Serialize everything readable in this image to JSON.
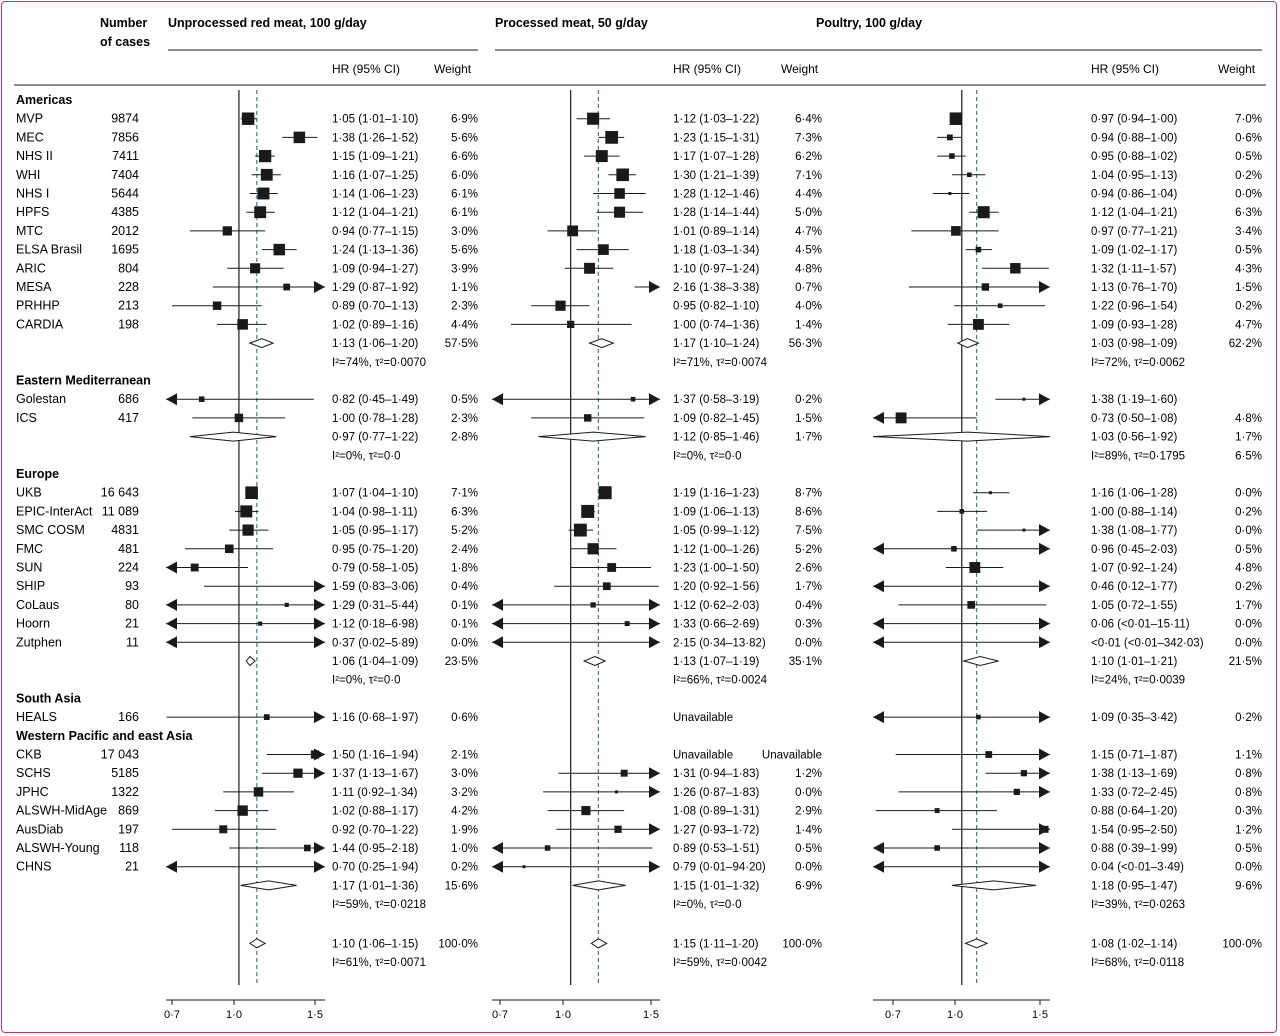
{
  "header": {
    "cases_label_line1": "Number",
    "cases_label_line2": "of cases",
    "hr_label": "HR (95% CI)",
    "weight_label": "Weight"
  },
  "colors": {
    "frame": "#c8356b",
    "ink": "#1a1a1a",
    "dashed": "#3b7d8c"
  },
  "panels": [
    {
      "title": "Unprocessed red meat, 100 g/day",
      "ticks": [
        "0·7",
        "1·0",
        "1·5"
      ],
      "overall_line": 1.1
    },
    {
      "title": "Processed meat, 50 g/day",
      "ticks": [
        "0·7",
        "1·0",
        "1·5"
      ],
      "overall_line": 1.15
    },
    {
      "title": "Poultry, 100 g/day",
      "ticks": [
        "0·7",
        "1·0",
        "1·5"
      ],
      "overall_line": 1.08
    }
  ],
  "chart_data": {
    "type": "forest",
    "xscale": "log",
    "xlim": [
      0.7,
      1.5
    ],
    "rows": [
      {
        "kind": "region",
        "label": "Americas"
      },
      {
        "kind": "study",
        "label": "MVP",
        "cases": "9874",
        "r": [
          1.05,
          1.01,
          1.1,
          "1·05 (1·01–1·10)",
          "6·9%"
        ],
        "p": [
          1.12,
          1.03,
          1.22,
          "1·12 (1·03–1·22)",
          "6·4%"
        ],
        "c": [
          0.97,
          0.94,
          1.0,
          "0·97 (0·94–1·00)",
          "7·0%"
        ]
      },
      {
        "kind": "study",
        "label": "MEC",
        "cases": "7856",
        "r": [
          1.38,
          1.26,
          1.52,
          "1·38 (1·26–1·52)",
          "5·6%"
        ],
        "p": [
          1.23,
          1.15,
          1.31,
          "1·23 (1·15–1·31)",
          "7·3%"
        ],
        "c": [
          0.94,
          0.88,
          1.0,
          "0·94 (0·88–1·00)",
          "0·6%"
        ]
      },
      {
        "kind": "study",
        "label": "NHS II",
        "cases": "7411",
        "r": [
          1.15,
          1.09,
          1.21,
          "1·15 (1·09–1·21)",
          "6·6%"
        ],
        "p": [
          1.17,
          1.07,
          1.28,
          "1·17 (1·07–1·28)",
          "6·2%"
        ],
        "c": [
          0.95,
          0.88,
          1.02,
          "0·95 (0·88–1·02)",
          "0·5%"
        ]
      },
      {
        "kind": "study",
        "label": "WHI",
        "cases": "7404",
        "r": [
          1.16,
          1.07,
          1.25,
          "1·16 (1·07–1·25)",
          "6·0%"
        ],
        "p": [
          1.3,
          1.21,
          1.39,
          "1·30 (1·21–1·39)",
          "7·1%"
        ],
        "c": [
          1.04,
          0.95,
          1.13,
          "1·04 (0·95–1·13)",
          "0·2%"
        ]
      },
      {
        "kind": "study",
        "label": "NHS I",
        "cases": "5644",
        "r": [
          1.14,
          1.06,
          1.23,
          "1·14 (1·06–1·23)",
          "6·1%"
        ],
        "p": [
          1.28,
          1.12,
          1.46,
          "1·28 (1·12–1·46)",
          "4·4%"
        ],
        "c": [
          0.94,
          0.86,
          1.04,
          "0·94 (0·86–1·04)",
          "0·0%"
        ]
      },
      {
        "kind": "study",
        "label": "HPFS",
        "cases": "4385",
        "r": [
          1.12,
          1.04,
          1.21,
          "1·12 (1·04–1·21)",
          "6·1%"
        ],
        "p": [
          1.28,
          1.14,
          1.44,
          "1·28 (1·14–1·44)",
          "5·0%"
        ],
        "c": [
          1.12,
          1.04,
          1.21,
          "1·12 (1·04–1·21)",
          "6·3%"
        ]
      },
      {
        "kind": "study",
        "label": "MTC",
        "cases": "2012",
        "r": [
          0.94,
          0.77,
          1.15,
          "0·94 (0·77–1·15)",
          "3·0%"
        ],
        "p": [
          1.01,
          0.89,
          1.14,
          "1·01 (0·89–1·14)",
          "4·7%"
        ],
        "c": [
          0.97,
          0.77,
          1.21,
          "0·97 (0·77–1·21)",
          "3·4%"
        ]
      },
      {
        "kind": "study",
        "label": "ELSA Brasil",
        "cases": "1695",
        "r": [
          1.24,
          1.13,
          1.36,
          "1·24 (1·13–1·36)",
          "5·6%"
        ],
        "p": [
          1.18,
          1.03,
          1.34,
          "1·18 (1·03–1·34)",
          "4·5%"
        ],
        "c": [
          1.09,
          1.02,
          1.17,
          "1·09 (1·02–1·17)",
          "0·5%"
        ]
      },
      {
        "kind": "study",
        "label": "ARIC",
        "cases": "804",
        "r": [
          1.09,
          0.94,
          1.27,
          "1·09 (0·94–1·27)",
          "3·9%"
        ],
        "p": [
          1.1,
          0.97,
          1.24,
          "1·10 (0·97–1·24)",
          "4·8%"
        ],
        "c": [
          1.32,
          1.11,
          1.57,
          "1·32 (1·11–1·57)",
          "4·3%"
        ]
      },
      {
        "kind": "study",
        "label": "MESA",
        "cases": "228",
        "r": [
          1.29,
          0.87,
          1.92,
          "1·29 (0·87–1·92)",
          "1·1%"
        ],
        "p": [
          2.16,
          1.38,
          3.38,
          "2·16 (1·38–3·38)",
          "0·7%"
        ],
        "c": [
          1.13,
          0.76,
          1.7,
          "1·13 (0·76–1·70)",
          "1·5%"
        ]
      },
      {
        "kind": "study",
        "label": "PRHHP",
        "cases": "213",
        "r": [
          0.89,
          0.7,
          1.13,
          "0·89 (0·70–1·13)",
          "2·3%"
        ],
        "p": [
          0.95,
          0.82,
          1.1,
          "0·95 (0·82–1·10)",
          "4·0%"
        ],
        "c": [
          1.22,
          0.96,
          1.54,
          "1·22 (0·96–1·54)",
          "0·2%"
        ]
      },
      {
        "kind": "study",
        "label": "CARDIA",
        "cases": "198",
        "r": [
          1.02,
          0.89,
          1.16,
          "1·02 (0·89–1·16)",
          "4·4%"
        ],
        "p": [
          1.0,
          0.74,
          1.36,
          "1·00 (0·74–1·36)",
          "1·4%"
        ],
        "c": [
          1.09,
          0.93,
          1.28,
          "1·09 (0·93–1·28)",
          "4·7%"
        ]
      },
      {
        "kind": "pooled",
        "r": [
          1.13,
          1.06,
          1.2,
          "1·13 (1·06–1·20)",
          "57·5%"
        ],
        "p": [
          1.17,
          1.1,
          1.24,
          "1·17 (1·10–1·24)",
          "56·3%"
        ],
        "c": [
          1.03,
          0.98,
          1.09,
          "1·03 (0·98–1·09)",
          "62·2%"
        ]
      },
      {
        "kind": "het",
        "r": "I²=74%, τ²=0·0070",
        "p": "I²=71%, τ²=0·0074",
        "c": "I²=72%, τ²=0·0062"
      },
      {
        "kind": "region",
        "label": "Eastern Mediterranean"
      },
      {
        "kind": "study",
        "label": "Golestan",
        "cases": "686",
        "r": [
          0.82,
          0.45,
          1.49,
          "0·82 (0·45–1·49)",
          "0·5%"
        ],
        "p": [
          1.37,
          0.58,
          3.19,
          "1·37 (0·58–3·19)",
          "0·2%"
        ],
        "c": [
          1.38,
          1.19,
          1.6,
          "1·38 (1·19–1·60)",
          ""
        ]
      },
      {
        "kind": "study",
        "label": "ICS",
        "cases": "417",
        "r": [
          1.0,
          0.78,
          1.28,
          "1·00 (0·78–1·28)",
          "2·3%"
        ],
        "p": [
          1.09,
          0.82,
          1.45,
          "1·09 (0·82–1·45)",
          "1·5%"
        ],
        "c": [
          0.73,
          0.5,
          1.08,
          "0·73 (0·50–1·08)",
          "4·8%"
        ]
      },
      {
        "kind": "pooled",
        "r": [
          0.97,
          0.77,
          1.22,
          "0·97 (0·77–1·22)",
          "2·8%"
        ],
        "p": [
          1.12,
          0.85,
          1.46,
          "1·12 (0·85–1·46)",
          "1·7%"
        ],
        "c": [
          1.03,
          0.56,
          1.92,
          "1·03 (0·56–1·92)",
          "1·7%"
        ]
      },
      {
        "kind": "het",
        "r": "I²=0%, τ²=0·0",
        "p": "I²=0%, τ²=0·0",
        "c": "I²=89%, τ²=0·1795",
        "cw": "6·5%"
      },
      {
        "kind": "region",
        "label": "Europe"
      },
      {
        "kind": "study",
        "label": "UKB",
        "cases": "16 643",
        "r": [
          1.07,
          1.04,
          1.1,
          "1·07 (1·04–1·10)",
          "7·1%"
        ],
        "p": [
          1.19,
          1.16,
          1.23,
          "1·19 (1·16–1·23)",
          "8·7%"
        ],
        "c": [
          1.16,
          1.06,
          1.28,
          "1·16 (1·06–1·28)",
          "0·0%"
        ]
      },
      {
        "kind": "study",
        "label": "EPIC-InterAct",
        "cases": "11 089",
        "r": [
          1.04,
          0.98,
          1.11,
          "1·04 (0·98–1·11)",
          "6·3%"
        ],
        "p": [
          1.09,
          1.06,
          1.13,
          "1·09 (1·06–1·13)",
          "8·6%"
        ],
        "c": [
          1.0,
          0.88,
          1.14,
          "1·00 (0·88–1·14)",
          "0·2%"
        ]
      },
      {
        "kind": "study",
        "label": "SMC COSM",
        "cases": "4831",
        "r": [
          1.05,
          0.95,
          1.17,
          "1·05 (0·95–1·17)",
          "5·2%"
        ],
        "p": [
          1.05,
          0.99,
          1.12,
          "1·05 (0·99–1·12)",
          "7·5%"
        ],
        "c": [
          1.38,
          1.08,
          1.77,
          "1·38 (1·08–1·77)",
          "0·0%"
        ]
      },
      {
        "kind": "study",
        "label": "FMC",
        "cases": "481",
        "r": [
          0.95,
          0.75,
          1.2,
          "0·95 (0·75–1·20)",
          "2·4%"
        ],
        "p": [
          1.12,
          1.0,
          1.26,
          "1·12 (1·00–1·26)",
          "5·2%"
        ],
        "c": [
          0.96,
          0.45,
          2.03,
          "0·96 (0·45–2·03)",
          "0·5%"
        ]
      },
      {
        "kind": "study",
        "label": "SUN",
        "cases": "224",
        "r": [
          0.79,
          0.58,
          1.05,
          "0·79 (0·58–1·05)",
          "1·8%"
        ],
        "p": [
          1.23,
          1.0,
          1.5,
          "1·23 (1·00–1·50)",
          "2·6%"
        ],
        "c": [
          1.07,
          0.92,
          1.24,
          "1·07 (0·92–1·24)",
          "4·8%"
        ]
      },
      {
        "kind": "study",
        "label": "SHIP",
        "cases": "93",
        "r": [
          1.59,
          0.83,
          3.06,
          "1·59 (0·83–3·06)",
          "0·4%"
        ],
        "p": [
          1.2,
          0.92,
          1.56,
          "1·20 (0·92–1·56)",
          "1·7%"
        ],
        "c": [
          0.46,
          0.12,
          1.77,
          "0·46 (0·12–1·77)",
          "0·2%"
        ]
      },
      {
        "kind": "study",
        "label": "CoLaus",
        "cases": "80",
        "r": [
          1.29,
          0.31,
          5.44,
          "1·29 (0·31–5·44)",
          "0·1%"
        ],
        "p": [
          1.12,
          0.62,
          2.03,
          "1·12 (0·62–2·03)",
          "0·4%"
        ],
        "c": [
          1.05,
          0.72,
          1.55,
          "1·05 (0·72–1·55)",
          "1·7%"
        ]
      },
      {
        "kind": "study",
        "label": "Hoorn",
        "cases": "21",
        "r": [
          1.12,
          0.18,
          6.98,
          "1·12 (0·18–6·98)",
          "0·1%"
        ],
        "p": [
          1.33,
          0.66,
          2.69,
          "1·33 (0·66–2·69)",
          "0·3%"
        ],
        "c": [
          0.06,
          0.001,
          15.11,
          "0·06 (<0·01–15·11)",
          "0·0%"
        ]
      },
      {
        "kind": "study",
        "label": "Zutphen",
        "cases": "11",
        "r": [
          0.37,
          0.02,
          5.89,
          "0·37 (0·02–5·89)",
          "0·0%"
        ],
        "p": [
          2.15,
          0.34,
          13.82,
          "2·15 (0·34–13·82)",
          "0·0%"
        ],
        "c": [
          0.001,
          0.001,
          342.03,
          "<0·01 (<0·01–342·03)",
          "0·0%"
        ]
      },
      {
        "kind": "pooled",
        "r": [
          1.06,
          1.04,
          1.09,
          "1·06 (1·04–1·09)",
          "23·5%"
        ],
        "p": [
          1.13,
          1.07,
          1.19,
          "1·13 (1·07–1·19)",
          "35·1%"
        ],
        "c": [
          1.1,
          1.01,
          1.21,
          "1·10 (1·01–1·21)",
          "21·5%"
        ]
      },
      {
        "kind": "het",
        "r": "I²=0%, τ²=0·0",
        "p": "I²=66%, τ²=0·0024",
        "c": "I²=24%, τ²=0·0039"
      },
      {
        "kind": "region",
        "label": "South Asia"
      },
      {
        "kind": "study",
        "label": "HEALS",
        "cases": "166",
        "r": [
          1.16,
          0.68,
          1.97,
          "1·16 (0·68–1·97)",
          "0·6%"
        ],
        "p": [
          null,
          null,
          null,
          "Unavailable",
          ""
        ],
        "c": [
          1.09,
          0.35,
          3.42,
          "1·09 (0·35–3·42)",
          "0·2%"
        ]
      },
      {
        "kind": "region",
        "label": "Western Pacific and east Asia"
      },
      {
        "kind": "study",
        "label": "CKB",
        "cases": "17 043",
        "r": [
          1.5,
          1.16,
          1.94,
          "1·50 (1·16–1·94)",
          "2·1%"
        ],
        "p": [
          null,
          null,
          null,
          "Unavailable",
          "Unavailable"
        ],
        "c": [
          1.15,
          0.71,
          1.87,
          "1·15 (0·71–1·87)",
          "1·1%"
        ]
      },
      {
        "kind": "study",
        "label": "SCHS",
        "cases": "5185",
        "r": [
          1.37,
          1.13,
          1.67,
          "1·37 (1·13–1·67)",
          "3·0%"
        ],
        "p": [
          1.31,
          0.94,
          1.83,
          "1·31 (0·94–1·83)",
          "1·2%"
        ],
        "c": [
          1.38,
          1.13,
          1.69,
          "1·38 (1·13–1·69)",
          "0·8%"
        ]
      },
      {
        "kind": "study",
        "label": "JPHC",
        "cases": "1322",
        "r": [
          1.11,
          0.92,
          1.34,
          "1·11 (0·92–1·34)",
          "3·2%"
        ],
        "p": [
          1.26,
          0.87,
          1.83,
          "1·26 (0·87–1·83)",
          "0·0%"
        ],
        "c": [
          1.33,
          0.72,
          2.45,
          "1·33 (0·72–2·45)",
          "0·8%"
        ]
      },
      {
        "kind": "study",
        "label": "ALSWH-MidAge",
        "cases": "869",
        "r": [
          1.02,
          0.88,
          1.17,
          "1·02 (0·88–1·17)",
          "4·2%"
        ],
        "p": [
          1.08,
          0.89,
          1.31,
          "1·08 (0·89–1·31)",
          "2·9%"
        ],
        "c": [
          0.88,
          0.64,
          1.2,
          "0·88 (0·64–1·20)",
          "0·3%"
        ]
      },
      {
        "kind": "study",
        "label": "AusDiab",
        "cases": "197",
        "r": [
          0.92,
          0.7,
          1.22,
          "0·92 (0·70–1·22)",
          "1·9%"
        ],
        "p": [
          1.27,
          0.93,
          1.72,
          "1·27 (0·93–1·72)",
          "1·4%"
        ],
        "c": [
          1.54,
          0.95,
          2.5,
          "1·54 (0·95–2·50)",
          "1·2%"
        ]
      },
      {
        "kind": "study",
        "label": "ALSWH-Young",
        "cases": "118",
        "r": [
          1.44,
          0.95,
          2.18,
          "1·44 (0·95–2·18)",
          "1·0%"
        ],
        "p": [
          0.89,
          0.53,
          1.51,
          "0·89 (0·53–1·51)",
          "0·5%"
        ],
        "c": [
          0.88,
          0.39,
          1.99,
          "0·88 (0·39–1·99)",
          "0·5%"
        ]
      },
      {
        "kind": "study",
        "label": "CHNS",
        "cases": "21",
        "r": [
          0.7,
          0.25,
          1.94,
          "0·70 (0·25–1·94)",
          "0·2%"
        ],
        "p": [
          0.79,
          0.01,
          94.2,
          "0·79 (0·01–94·20)",
          "0·0%"
        ],
        "c": [
          0.04,
          0.001,
          3.49,
          "0·04 (<0·01–3·49)",
          "0·0%"
        ]
      },
      {
        "kind": "pooled",
        "r": [
          1.17,
          1.01,
          1.36,
          "1·17 (1·01–1·36)",
          "15·6%"
        ],
        "p": [
          1.15,
          1.01,
          1.32,
          "1·15 (1·01–1·32)",
          "6·9%"
        ],
        "c": [
          1.18,
          0.95,
          1.47,
          "1·18 (0·95–1·47)",
          "9·6%"
        ]
      },
      {
        "kind": "het",
        "r": "I²=59%, τ²=0·0218",
        "p": "I²=0%, τ²=0·0",
        "c": "I²=39%, τ²=0·0263"
      },
      {
        "kind": "gap"
      },
      {
        "kind": "pooled",
        "r": [
          1.1,
          1.06,
          1.15,
          "1·10 (1·06–1·15)",
          "100·0%"
        ],
        "p": [
          1.15,
          1.11,
          1.2,
          "1·15 (1·11–1·20)",
          "100·0%"
        ],
        "c": [
          1.08,
          1.02,
          1.14,
          "1·08 (1·02–1·14)",
          "100·0%"
        ]
      },
      {
        "kind": "het",
        "r": "I²=61%, τ²=0·0071",
        "p": "I²=59%, τ²=0·0042",
        "c": "I²=68%, τ²=0·0118"
      }
    ]
  }
}
